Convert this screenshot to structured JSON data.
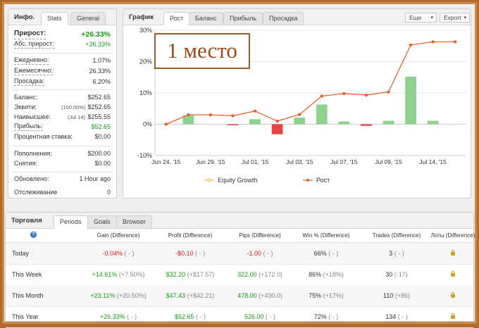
{
  "info_panel": {
    "title": "Инфо.",
    "tabs": [
      "Stats",
      "General"
    ],
    "growth": {
      "label": "Прирост:",
      "value": "+26.33%"
    },
    "abs_growth": {
      "label": "Абс. прирост:",
      "value": "+26.33%"
    },
    "daily": {
      "label": "Ежедневно:",
      "value": "1.07%"
    },
    "monthly": {
      "label": "Ежемесячно:",
      "value": "26.33%"
    },
    "drawdown": {
      "label": "Просадка:",
      "value": "6.20%"
    },
    "balance": {
      "label": "Баланс:",
      "value": "$252.65"
    },
    "equity": {
      "label": "Эквити:",
      "note": "(100.00%)",
      "value": "$252.65"
    },
    "highest": {
      "label": "Наивысшее:",
      "note": "(Jul 14)",
      "value": "$255.55"
    },
    "profit": {
      "label": "Прибыль:",
      "value": "$52.65"
    },
    "interest": {
      "label": "Процентная ставка:",
      "value": "$0.00"
    },
    "deposits": {
      "label": "Пополнения:",
      "value": "$200.00"
    },
    "withdrawals": {
      "label": "Снятия:",
      "value": "$0.00"
    },
    "updated": {
      "label": "Обновлено:",
      "value": "1 Hour ago"
    },
    "tracking": {
      "label": "Отслеживание",
      "value": "0"
    }
  },
  "chart_panel": {
    "title": "График",
    "tabs": [
      "Рост",
      "Баланс",
      "Прибыль",
      "Просадка"
    ],
    "more_button": "Еще",
    "export_button": "Export",
    "overlay_text": "1 место"
  },
  "chart_data": {
    "type": "line",
    "x": [
      "Jun 24, '15",
      "",
      "Jun 29, '15",
      "",
      "Jul 01, '15",
      "",
      "Jul 03, '15",
      "",
      "Jul 07, '15",
      "",
      "Jul 09, '15",
      "",
      "Jul 14, '15",
      ""
    ],
    "xtick_labels": [
      "Jun 24, '15",
      "Jun 29, '15",
      "Jul 01, '15",
      "Jul 03, '15",
      "Jul 07, '15",
      "Jul 09, '15",
      "Jul 14, '15"
    ],
    "ytick_labels": [
      "30%",
      "20%",
      "10%",
      "0%",
      "-10%"
    ],
    "ylim": [
      -10,
      30
    ],
    "grid": true,
    "legend_position": "bottom",
    "series": [
      {
        "name": "Equity Growth",
        "type": "bar",
        "color": "#8fd18f",
        "neg_color": "#e64545",
        "values": [
          0,
          2.8,
          0,
          -0.3,
          1.6,
          -3.2,
          2.1,
          6.3,
          0.9,
          -0.5,
          1.1,
          15.2,
          1.1,
          0
        ]
      },
      {
        "name": "Рост",
        "type": "line",
        "color": "#e8612c",
        "values": [
          0,
          3.0,
          3.0,
          2.7,
          4.2,
          1.0,
          3.1,
          9.0,
          9.8,
          9.3,
          10.3,
          25.3,
          26.3,
          26.3
        ]
      }
    ]
  },
  "trading_panel": {
    "title": "Торговля",
    "tabs": [
      "Periods",
      "Goals",
      "Browser"
    ],
    "columns": [
      "Gain (Difference)",
      "Profit (Difference)",
      "Pips (Difference)",
      "Win % (Difference)",
      "Trades (Difference)",
      "Лоты (Difference)"
    ],
    "rows": [
      {
        "period": "Today",
        "gain": "-0.04%",
        "gain_diff": "( - )",
        "profit": "-$0.10",
        "profit_diff": "( - )",
        "pips": "-1.00",
        "pips_diff": "( - )",
        "win": "66%",
        "win_diff": "( - )",
        "trades": "3",
        "trades_diff": "( - )",
        "sign": "neg"
      },
      {
        "period": "This Week",
        "gain": "+14.61%",
        "gain_diff": "(+7.50%)",
        "profit": "$32.20",
        "profit_diff": "(+$17.57)",
        "pips": "322.00",
        "pips_diff": "(+172.0)",
        "win": "86%",
        "win_diff": "(+18%)",
        "trades": "30",
        "trades_diff": "(-17)",
        "sign": "pos"
      },
      {
        "period": "This Month",
        "gain": "+23.11%",
        "gain_diff": "(+20.50%)",
        "profit": "$47.43",
        "profit_diff": "(+$42.21)",
        "pips": "478.00",
        "pips_diff": "(+430.0)",
        "win": "75%",
        "win_diff": "(+17%)",
        "trades": "110",
        "trades_diff": "(+86)",
        "sign": "pos"
      },
      {
        "period": "This Year",
        "gain": "+26.33%",
        "gain_diff": "( - )",
        "profit": "$52.65",
        "profit_diff": "( - )",
        "pips": "526.00",
        "pips_diff": "( - )",
        "win": "72%",
        "win_diff": "( - )",
        "trades": "134",
        "trades_diff": "( - )",
        "sign": "pos"
      }
    ]
  }
}
